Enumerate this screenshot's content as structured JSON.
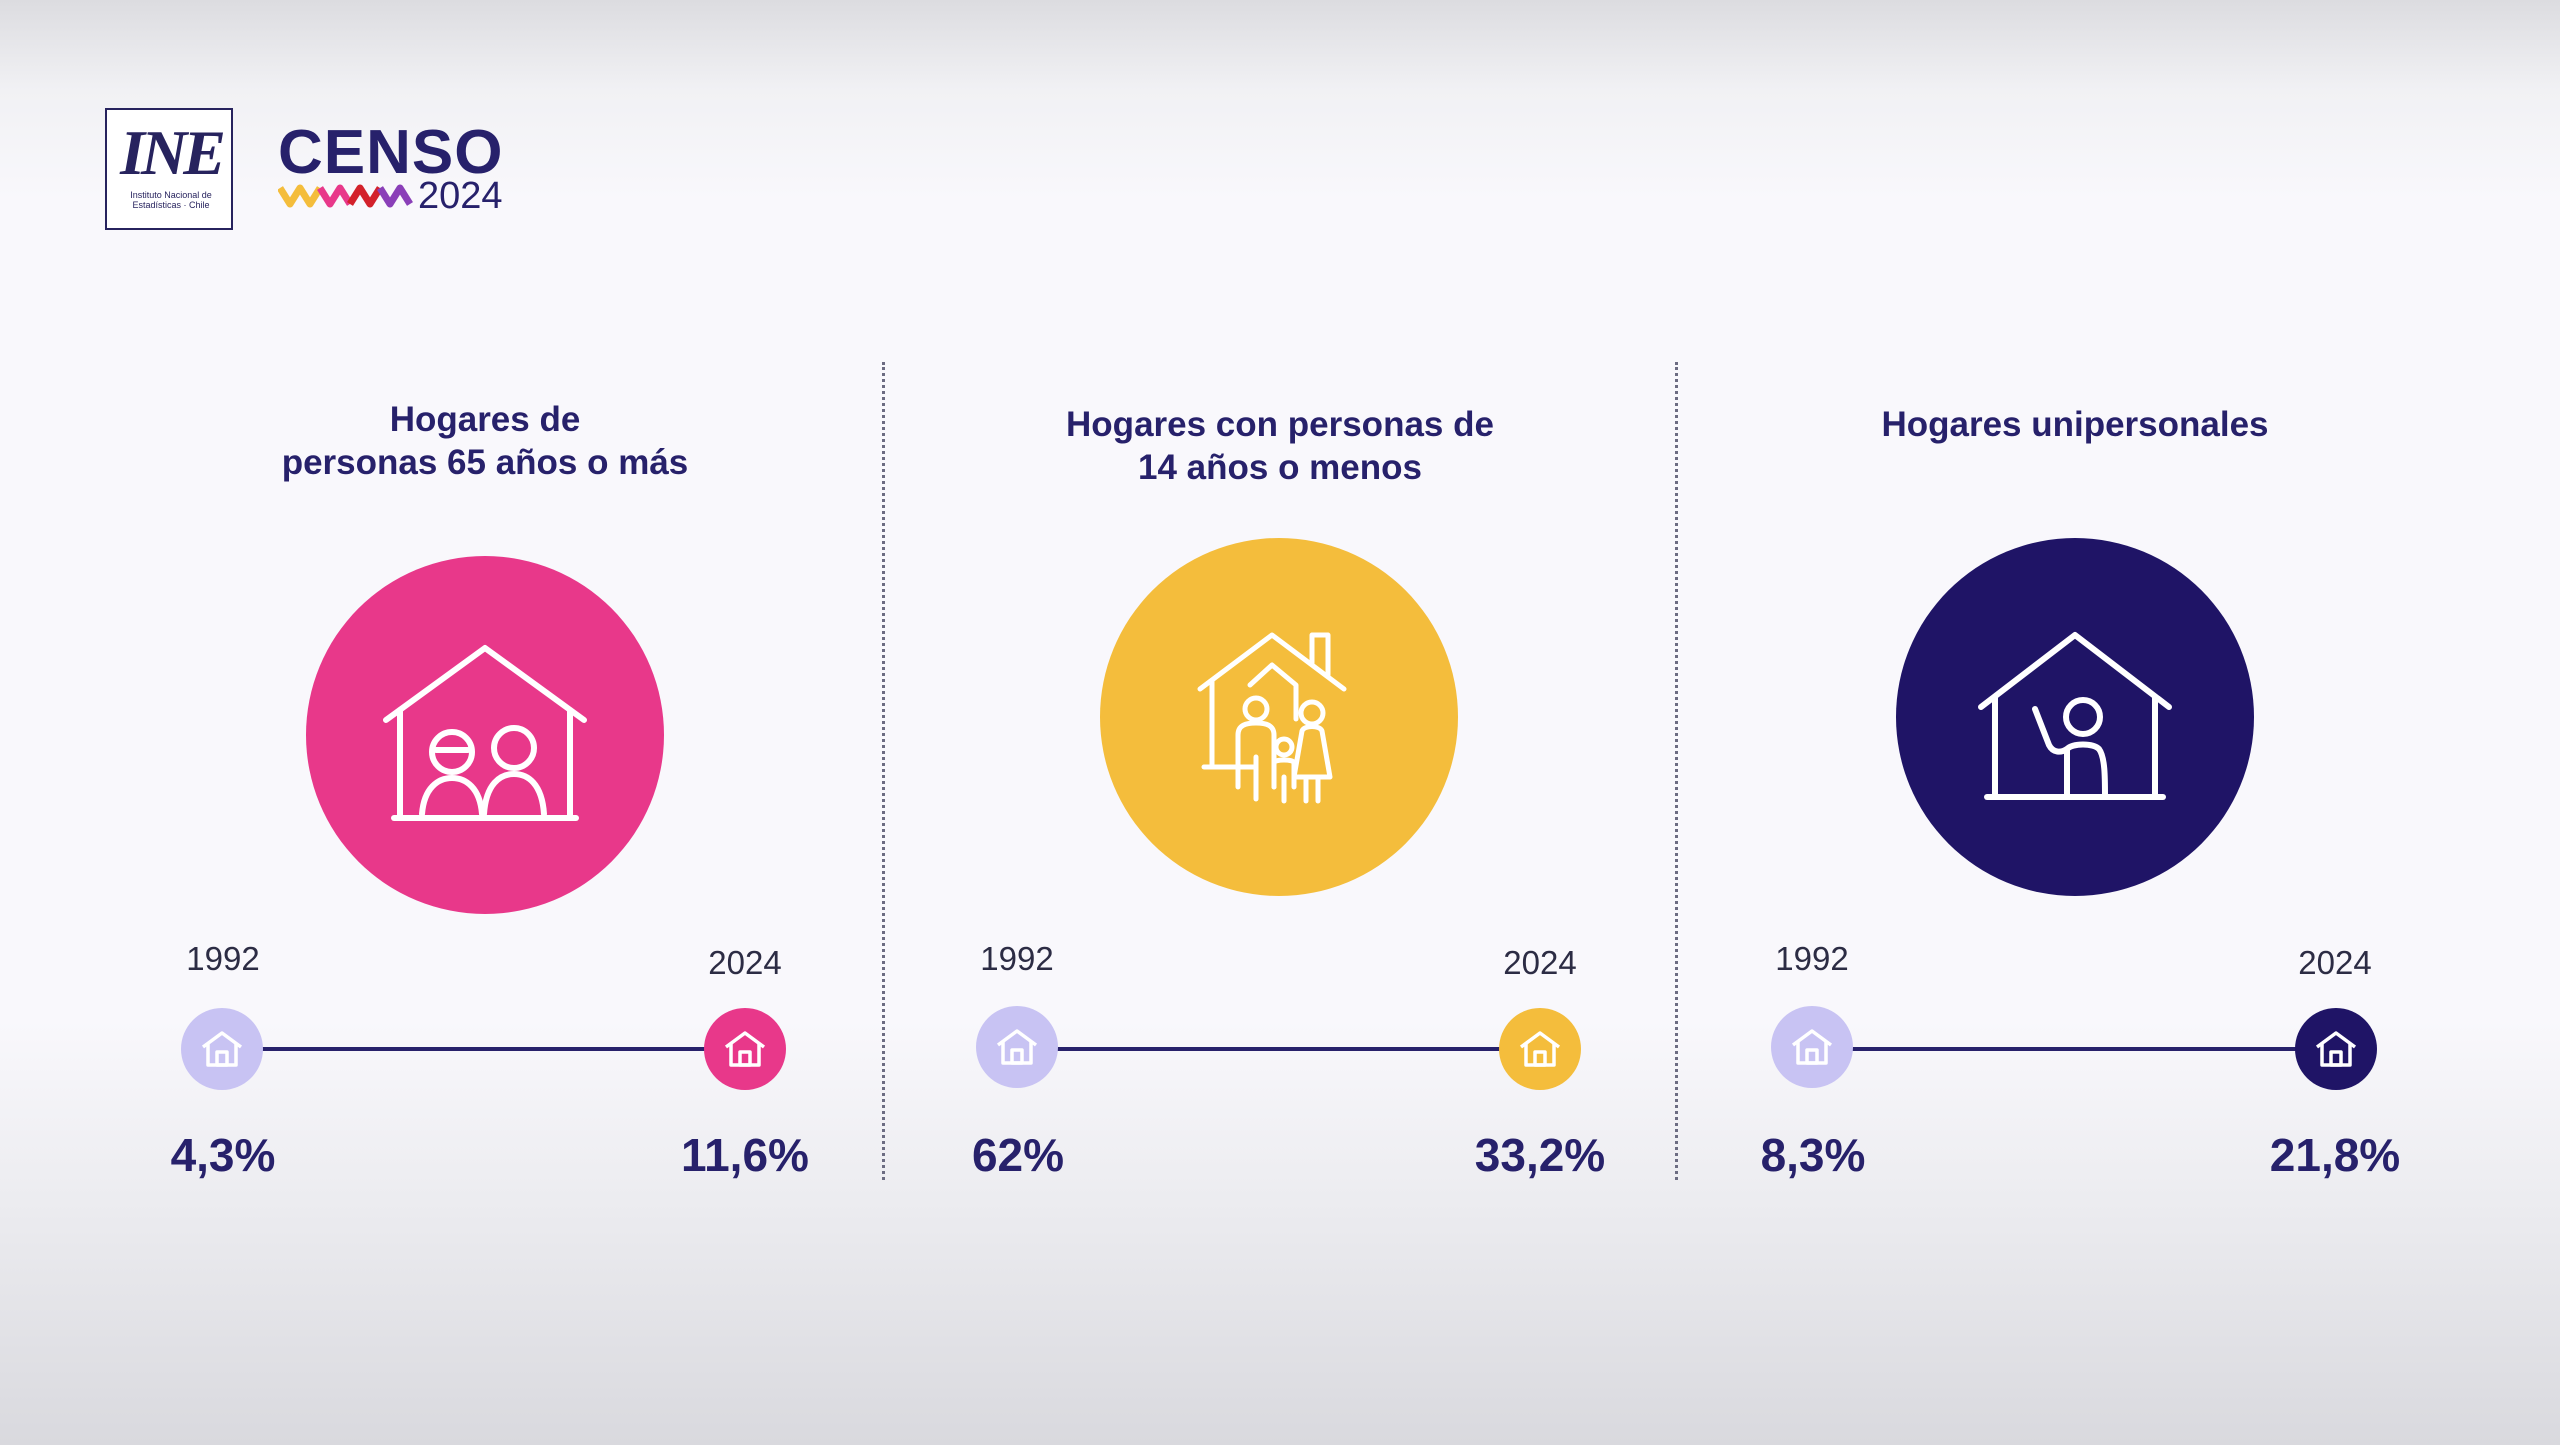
{
  "brand": {
    "ine_logo_text": "INE",
    "ine_subtext": "Instituto Nacional de Estadísticas · Chile",
    "censo_title": "CENSO",
    "censo_year": "2024"
  },
  "colors": {
    "navy": "#27216b",
    "pink": "#e8388a",
    "yellow": "#f4bd3c",
    "lavender": "#c8c3f3"
  },
  "chart_data": [
    {
      "type": "bar",
      "title": "Hogares de personas 65 años o más",
      "categories": [
        "1992",
        "2024"
      ],
      "values": [
        4.3,
        11.6
      ],
      "value_labels": [
        "4,3%",
        "11,6%"
      ],
      "unit": "%",
      "icon": "elderly-couple-house-icon",
      "accent": "#e8388a"
    },
    {
      "type": "bar",
      "title": "Hogares con personas de 14 años o menos",
      "categories": [
        "1992",
        "2024"
      ],
      "values": [
        62,
        33.2
      ],
      "value_labels": [
        "62%",
        "33,2%"
      ],
      "unit": "%",
      "icon": "family-house-icon",
      "accent": "#f4bd3c"
    },
    {
      "type": "bar",
      "title": "Hogares unipersonales",
      "categories": [
        "1992",
        "2024"
      ],
      "values": [
        8.3,
        21.8
      ],
      "value_labels": [
        "8,3%",
        "21,8%"
      ],
      "unit": "%",
      "icon": "single-person-house-icon",
      "accent": "#1f1466"
    }
  ],
  "panels": [
    {
      "title_line1": "Hogares de",
      "title_line2": "personas 65 años o más",
      "year_start": "1992",
      "year_end": "2024",
      "value_start": "4,3%",
      "value_end": "11,6%"
    },
    {
      "title_line1": "Hogares con personas de",
      "title_line2": "14 años o menos",
      "year_start": "1992",
      "year_end": "2024",
      "value_start": "62%",
      "value_end": "33,2%"
    },
    {
      "title_line1": "Hogares unipersonales",
      "title_line2": "",
      "year_start": "1992",
      "year_end": "2024",
      "value_start": "8,3%",
      "value_end": "21,8%"
    }
  ]
}
